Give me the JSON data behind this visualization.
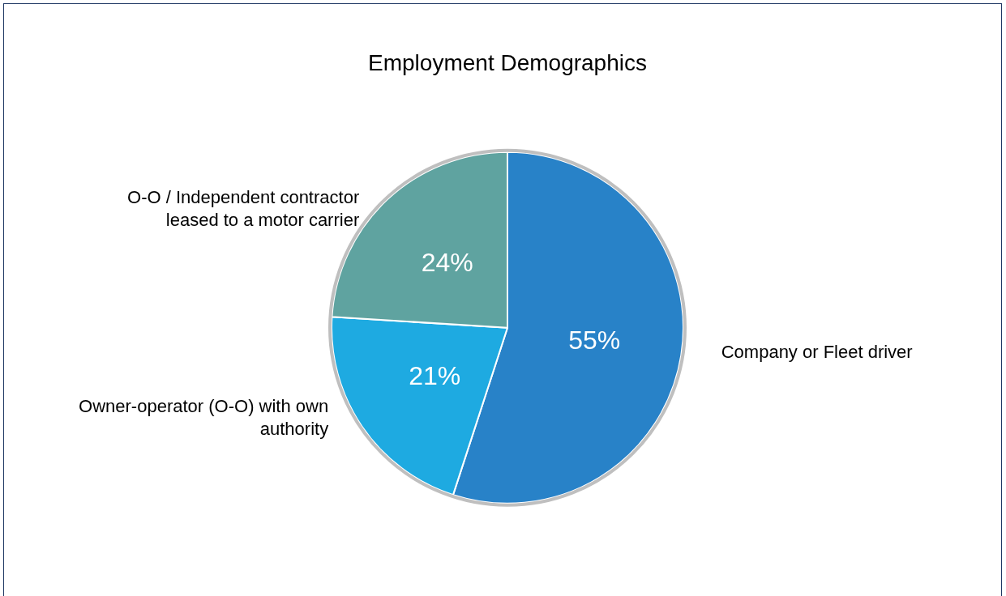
{
  "chart_data": {
    "type": "pie",
    "title": "Employment Demographics",
    "categories": [
      "Company or Fleet driver",
      "Owner-operator (O-O) with own authority",
      "O-O / Independent contractor leased to a motor carrier"
    ],
    "values": [
      55,
      21,
      24
    ],
    "colors": [
      "#2882c8",
      "#1eaae1",
      "#5fa3a0"
    ],
    "value_labels": [
      "55%",
      "21%",
      "24%"
    ],
    "legend": false
  }
}
